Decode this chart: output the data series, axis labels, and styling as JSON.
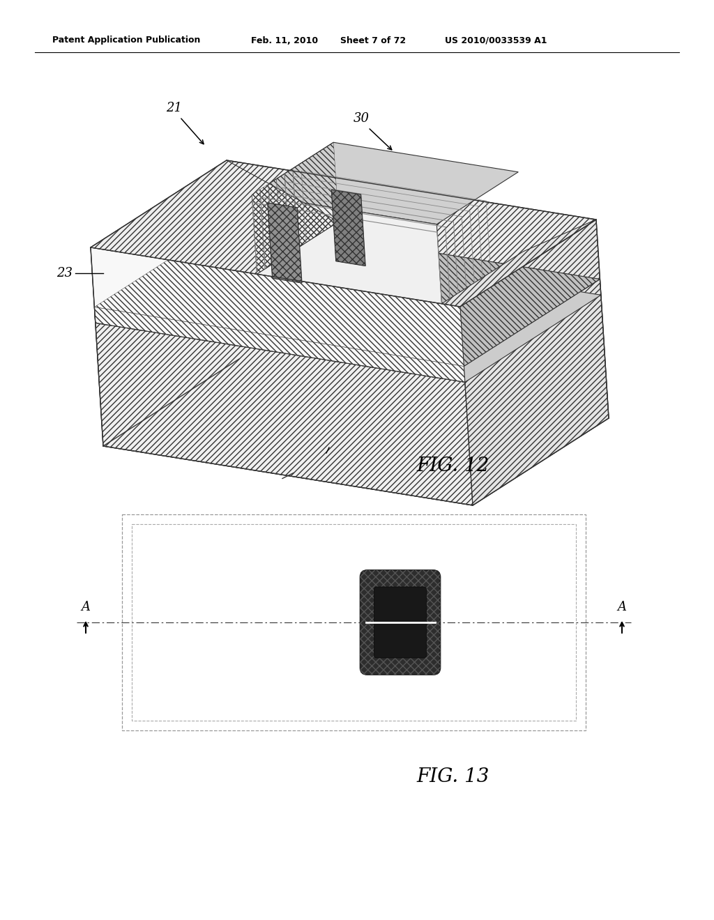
{
  "bg_color": "#ffffff",
  "header_text": "Patent Application Publication",
  "header_date": "Feb. 11, 2010",
  "header_sheet": "Sheet 7 of 72",
  "header_patent": "US 2010/0033539 A1",
  "fig12_label": "FIG. 12",
  "fig13_label": "FIG. 13",
  "label_21": "21",
  "label_23": "23",
  "label_30": "30",
  "label_A_left": "A",
  "label_A_right": "A",
  "line_color": "#333333",
  "hatch_color": "#555555"
}
